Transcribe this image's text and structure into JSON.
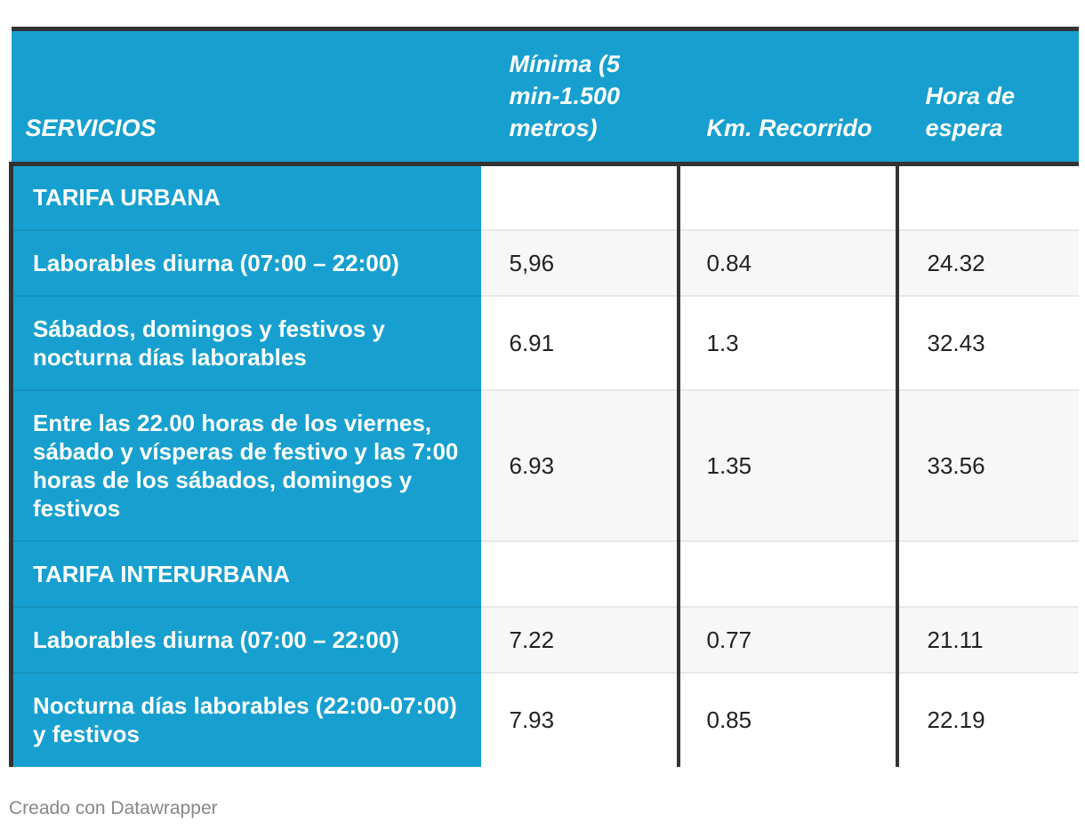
{
  "chart_data": {
    "type": "table",
    "columns": [
      "SERVICIOS",
      "Mínima (5 min-1.500 metros)",
      "Km. Recorrido",
      "Hora de espera"
    ],
    "rows": [
      {
        "label": "TARIFA URBANA",
        "minima": "",
        "km": "",
        "hora": ""
      },
      {
        "label": "Laborables diurna (07:00 – 22:00)",
        "minima": "5,96",
        "km": "0.84",
        "hora": "24.32"
      },
      {
        "label": "Sábados, domingos y festivos y nocturna días laborables",
        "minima": "6.91",
        "km": "1.3",
        "hora": "32.43"
      },
      {
        "label": "Entre las 22.00 horas de los viernes, sábado y vísperas de festivo y las 7:00 horas de los sábados, domingos y festivos",
        "minima": "6.93",
        "km": "1.35",
        "hora": "33.56"
      },
      {
        "label": "TARIFA INTERURBANA",
        "minima": "",
        "km": "",
        "hora": ""
      },
      {
        "label": "Laborables diurna (07:00 – 22:00)",
        "minima": "7.22",
        "km": "0.77",
        "hora": "21.11"
      },
      {
        "label": "Nocturna días laborables (22:00-07:00) y festivos",
        "minima": "7.93",
        "km": "0.85",
        "hora": "22.19"
      }
    ]
  },
  "footer": {
    "credit": "Creado con Datawrapper"
  },
  "colors": {
    "header_bg": "#17a0cf",
    "label_bg": "#17a0cf",
    "border_dark": "#333333",
    "row_alt": "#f7f7f7"
  }
}
